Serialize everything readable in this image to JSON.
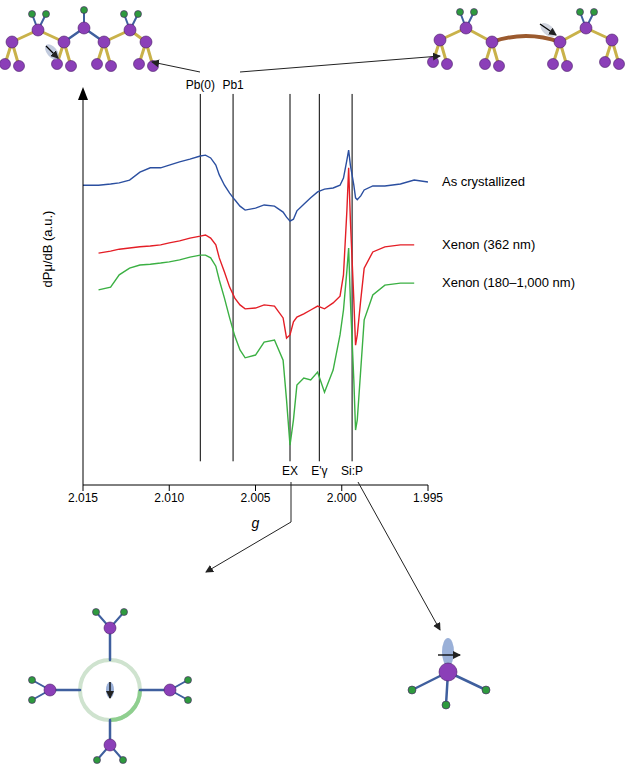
{
  "chart_data": {
    "type": "line",
    "x": [
      2.015,
      2.0141,
      2.0134,
      2.0129,
      2.0123,
      2.0117,
      2.0111,
      2.0105,
      2.01,
      2.0094,
      2.0088,
      2.0082,
      2.0079,
      2.0076,
      2.0073,
      2.0071,
      2.0068,
      2.0065,
      2.0062,
      2.0059,
      2.0056,
      2.005,
      2.0045,
      2.0039,
      2.0034,
      2.0032,
      2.003,
      2.0028,
      2.0026,
      2.0022,
      2.0018,
      2.0014,
      2.001,
      2.0005,
      2.0001,
      1.9999,
      1.9997,
      1.9996,
      1.9995,
      1.9993,
      1.9992,
      1.9991,
      1.9989,
      1.9987,
      1.9982,
      1.9975,
      1.9966,
      1.9958,
      1.995
    ],
    "xlim": [
      2.015,
      1.995
    ],
    "xticks": [
      2.015,
      {
        "value": 2.01,
        "label": "2.010"
      },
      2.005,
      {
        "value": 2,
        "label": "2.000"
      },
      1.995
    ],
    "ylim": [
      0,
      10
    ],
    "yticks": [],
    "tick_labels": "x",
    "xlabel": "g",
    "ylabel": "dPμ/dB (a.u.)",
    "series": [
      {
        "name": "As crystallized",
        "color": "#2b4fa0",
        "values": [
          7.59,
          7.59,
          7.62,
          7.65,
          7.72,
          7.92,
          8.03,
          8.03,
          8.1,
          8.18,
          8.25,
          8.33,
          8.35,
          8.28,
          8.1,
          7.85,
          7.59,
          7.39,
          7.22,
          7.06,
          6.96,
          7.01,
          7.09,
          7.06,
          6.91,
          6.78,
          6.68,
          6.73,
          6.94,
          7.11,
          7.27,
          7.42,
          7.49,
          7.52,
          7.59,
          7.77,
          8.23,
          8.48,
          8.1,
          7.59,
          7.27,
          7.22,
          7.32,
          7.47,
          7.57,
          7.57,
          7.62,
          7.72,
          7.67
        ]
      },
      {
        "name": "Xenon (362 nm)",
        "color": "#e41e26",
        "values": [
          null,
          5.87,
          5.92,
          5.97,
          6.0,
          6.03,
          6.05,
          6.08,
          6.13,
          6.18,
          6.25,
          6.3,
          6.33,
          6.25,
          6.08,
          5.75,
          5.39,
          5.01,
          4.73,
          4.56,
          4.46,
          4.48,
          4.56,
          4.53,
          4.23,
          3.72,
          3.8,
          4.13,
          4.25,
          4.33,
          4.43,
          4.53,
          4.46,
          4.61,
          4.78,
          5.32,
          6.96,
          8.03,
          6.71,
          4.68,
          3.54,
          3.8,
          4.68,
          5.49,
          5.9,
          6.03,
          6.08,
          6.08,
          null
        ]
      },
      {
        "name": "Xenon (180–1,000 nm)",
        "color": "#3bb043",
        "values": [
          null,
          4.94,
          5.01,
          5.32,
          5.49,
          5.57,
          5.59,
          5.62,
          5.65,
          5.7,
          5.77,
          5.82,
          5.82,
          5.75,
          5.54,
          5.19,
          4.73,
          4.23,
          3.77,
          3.42,
          3.22,
          3.29,
          3.62,
          3.67,
          3.16,
          2.15,
          1.01,
          1.65,
          2.53,
          2.71,
          2.66,
          2.86,
          2.35,
          2.91,
          3.8,
          4.43,
          5.44,
          6.0,
          4.68,
          2.66,
          1.39,
          1.65,
          2.91,
          4.18,
          4.81,
          5.06,
          5.11,
          5.11,
          null
        ]
      }
    ],
    "reference_lines": [
      {
        "label": "Pb(0)",
        "x": 2.0082
      },
      {
        "label": "Pb1",
        "x": 2.0063
      },
      {
        "label": "EX",
        "x": 2.003
      },
      {
        "label": "E'γ",
        "x": 2.0013
      },
      {
        "label": "Si:P",
        "x": 1.9994
      }
    ]
  }
}
